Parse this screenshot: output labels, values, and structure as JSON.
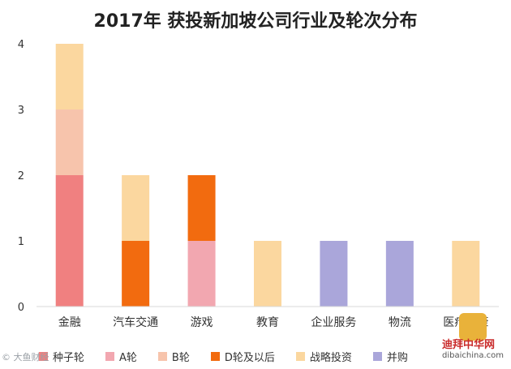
{
  "chart_data": {
    "type": "bar",
    "stacked": true,
    "title": "2017年 获投新加坡公司行业及轮次分布",
    "categories": [
      "金融",
      "汽车交通",
      "游戏",
      "教育",
      "企业服务",
      "物流",
      "医疗健康"
    ],
    "ylim": [
      0,
      4
    ],
    "yticks": [
      0,
      1,
      2,
      3,
      4
    ],
    "grid": false,
    "legend_position": "bottom",
    "series": [
      {
        "name": "种子轮",
        "color": "#f08080",
        "values": [
          2,
          0,
          0,
          0,
          0,
          0,
          0
        ]
      },
      {
        "name": "A轮",
        "color": "#f2a7b0",
        "values": [
          0,
          0,
          1,
          0,
          0,
          0,
          0
        ]
      },
      {
        "name": "B轮",
        "color": "#f7c4ac",
        "values": [
          1,
          0,
          0,
          0,
          0,
          0,
          0
        ]
      },
      {
        "name": "D轮及以后",
        "color": "#f26b0f",
        "values": [
          0,
          1,
          1,
          0,
          0,
          0,
          0
        ]
      },
      {
        "name": "战略投资",
        "color": "#fbd79f",
        "values": [
          1,
          1,
          0,
          1,
          0,
          0,
          1
        ]
      },
      {
        "name": "并购",
        "color": "#aaa6da",
        "values": [
          0,
          0,
          0,
          0,
          1,
          1,
          0
        ]
      }
    ]
  },
  "watermark": {
    "left_text": "© 大鱼财经",
    "right_cn": "迪拜中华网",
    "right_url": "dibaichina.com"
  }
}
